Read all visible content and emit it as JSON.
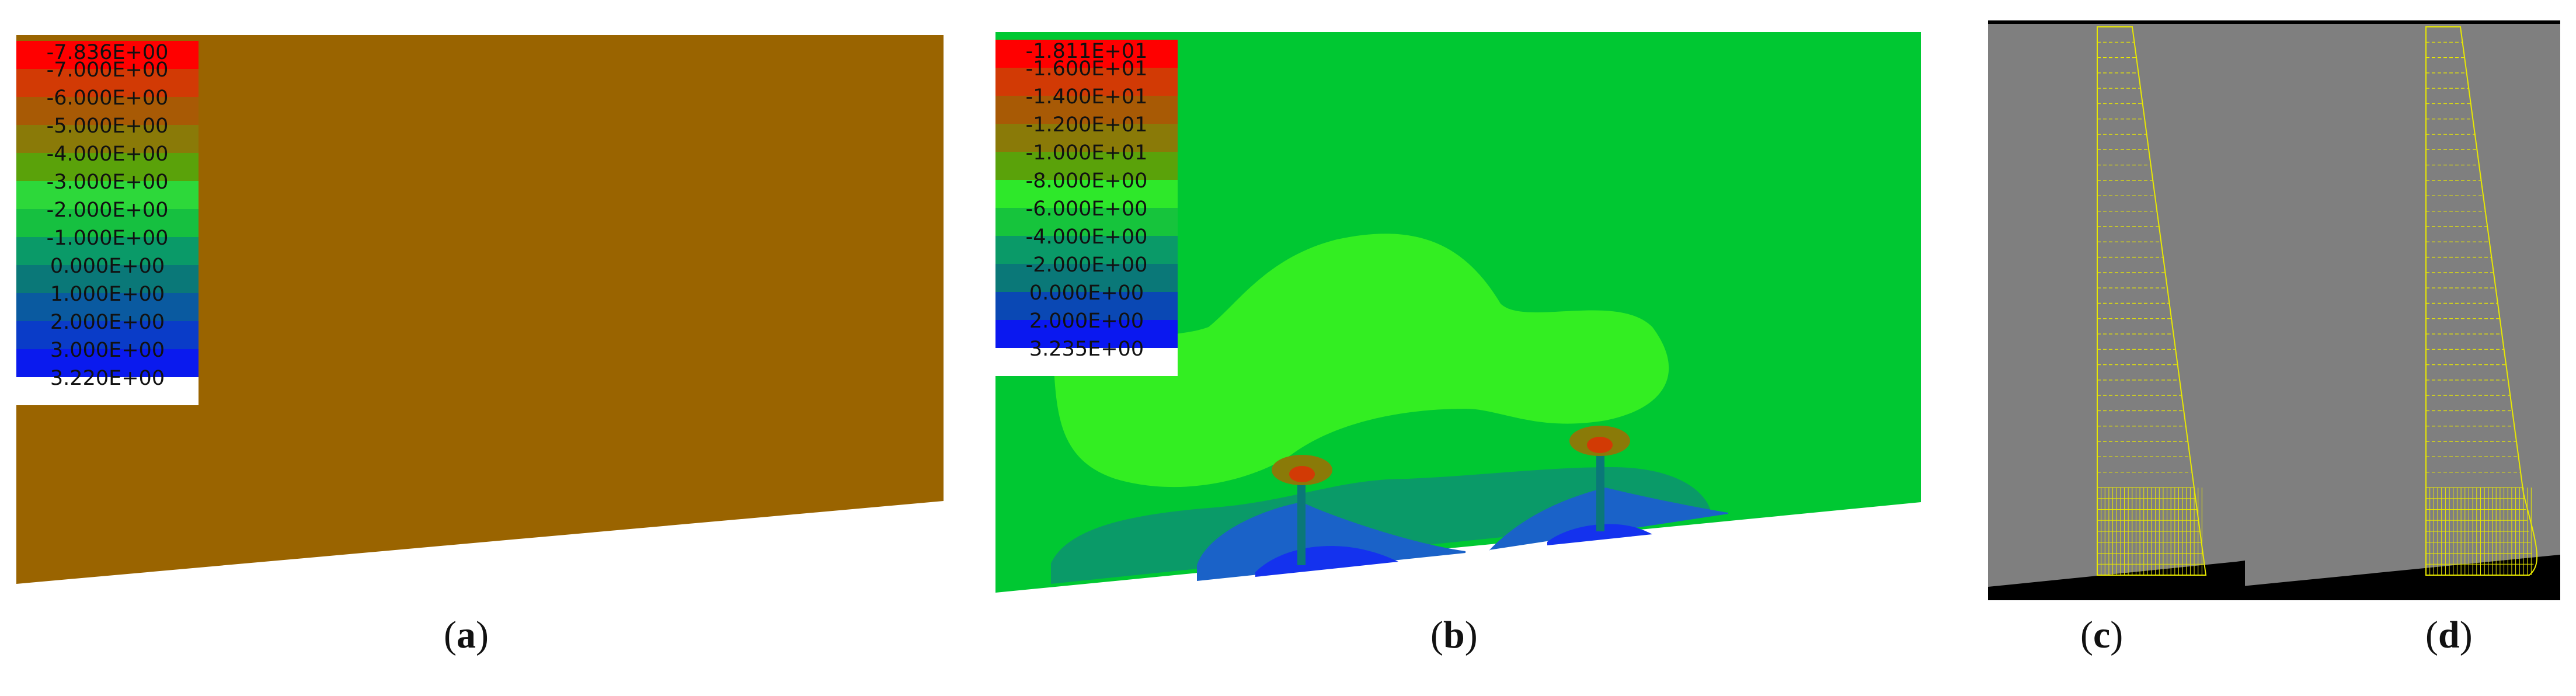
{
  "panel_a": {
    "caption_letter": "a",
    "fill_color": "#9a6400",
    "legend": [
      {
        "label": "-7.836E+00",
        "color": "#ff0000"
      },
      {
        "label": "-7.000E+00",
        "color": "#d23a05"
      },
      {
        "label": "-6.000E+00",
        "color": "#a85a05"
      },
      {
        "label": "-5.000E+00",
        "color": "#8a7a08"
      },
      {
        "label": "-4.000E+00",
        "color": "#5aa20a"
      },
      {
        "label": "-3.000E+00",
        "color": "#2dd83a"
      },
      {
        "label": "-2.000E+00",
        "color": "#16c040"
      },
      {
        "label": "-1.000E+00",
        "color": "#0a9a68"
      },
      {
        "label": "0.000E+00",
        "color": "#0a7878"
      },
      {
        "label": "1.000E+00",
        "color": "#0a5aa0"
      },
      {
        "label": "2.000E+00",
        "color": "#0a3cc8"
      },
      {
        "label": "3.000E+00",
        "color": "#0a1aee"
      },
      {
        "label": "3.220E+00",
        "color": "#ffffff"
      }
    ]
  },
  "panel_b": {
    "caption_letter": "b",
    "legend": [
      {
        "label": "-1.811E+01",
        "color": "#ff0000"
      },
      {
        "label": "-1.600E+01",
        "color": "#d23a05"
      },
      {
        "label": "-1.400E+01",
        "color": "#a85a05"
      },
      {
        "label": "-1.200E+01",
        "color": "#8a7a08"
      },
      {
        "label": "-1.000E+01",
        "color": "#5aa20a"
      },
      {
        "label": "-8.000E+00",
        "color": "#2ee82a"
      },
      {
        "label": "-6.000E+00",
        "color": "#16c43c"
      },
      {
        "label": "-4.000E+00",
        "color": "#0a9a68"
      },
      {
        "label": "-2.000E+00",
        "color": "#0a7878"
      },
      {
        "label": "0.000E+00",
        "color": "#0a48b4"
      },
      {
        "label": "2.000E+00",
        "color": "#0a18f0"
      },
      {
        "label": "3.235E+00",
        "color": "#ffffff"
      }
    ]
  },
  "panel_c": {
    "caption_letter": "c"
  },
  "panel_d": {
    "caption_letter": "d"
  },
  "colors": {
    "green_bg": "#00c832",
    "light_green": "#33ee22",
    "teal": "#0a9a68",
    "blue": "#1a62c8",
    "deep_blue": "#1432ee",
    "gray_bg": "#7f7f7f",
    "mesh_yellow": "#e8e800"
  }
}
